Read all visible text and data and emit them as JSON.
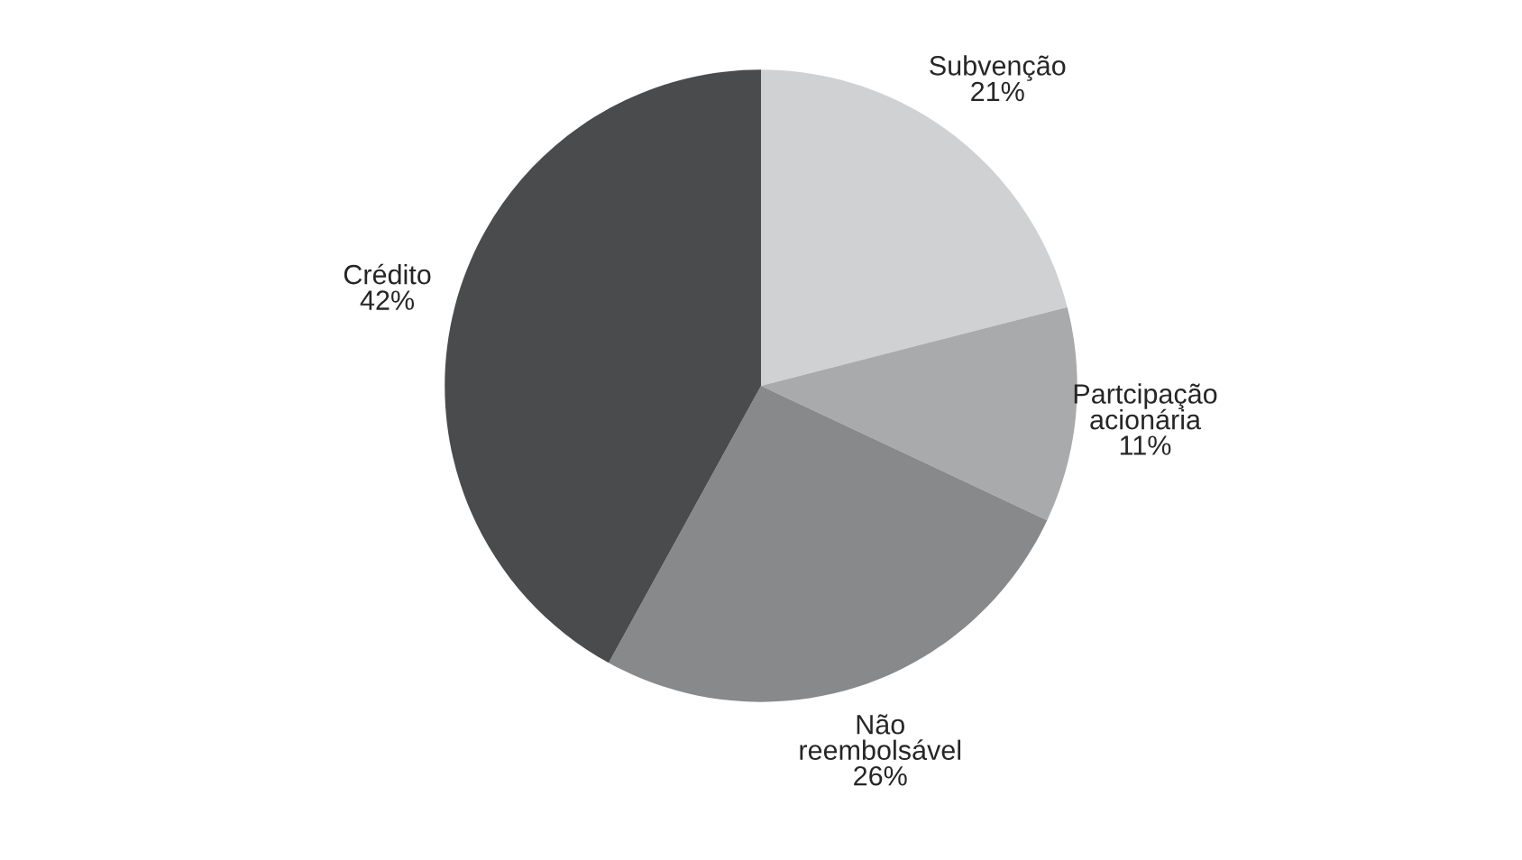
{
  "chart_data": {
    "type": "pie",
    "categories": [
      "Subvenção",
      "Partcipação acionária",
      "Não reembolsável",
      "Crédito"
    ],
    "values": [
      21,
      11,
      26,
      42
    ],
    "value_labels": [
      "21%",
      "11%",
      "26%",
      "42%"
    ],
    "colors": [
      "#d0d1d3",
      "#a9aaac",
      "#88898b",
      "#4a4b4d"
    ],
    "legend": false
  }
}
